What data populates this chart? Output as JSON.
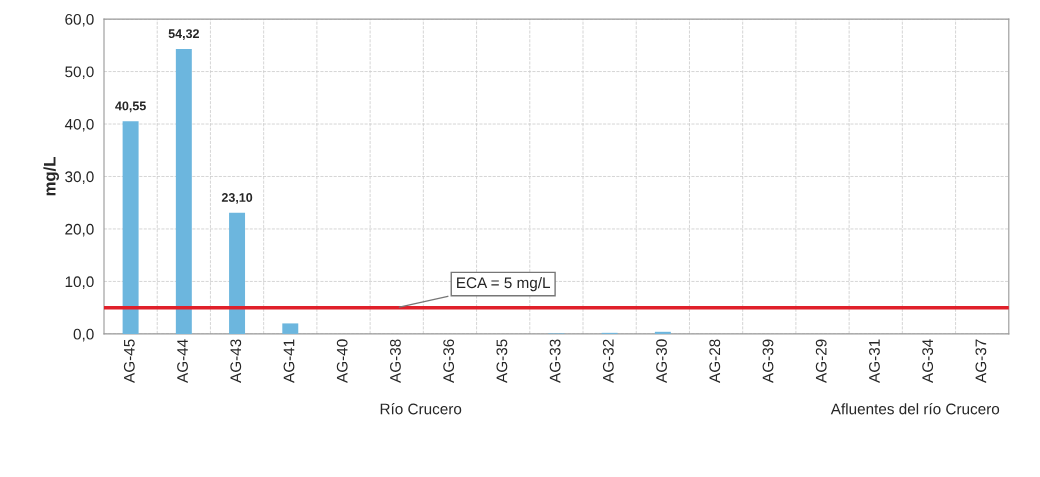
{
  "chart_data": {
    "type": "bar",
    "ylabel": "mg/L",
    "categories": [
      "AG-45",
      "AG-44",
      "AG-43",
      "AG-41",
      "AG-40",
      "AG-38",
      "AG-36",
      "AG-35",
      "AG-33",
      "AG-32",
      "AG-30",
      "AG-28",
      "AG-39",
      "AG-29",
      "AG-31",
      "AG-34",
      "AG-37"
    ],
    "values": [
      40.55,
      54.32,
      23.1,
      2.0,
      0,
      0,
      0,
      0,
      0.1,
      0.2,
      0.4,
      0,
      0,
      0,
      0,
      0,
      0
    ],
    "value_labels": [
      "40,55",
      "54,32",
      "23,10",
      null,
      null,
      null,
      null,
      null,
      null,
      null,
      null,
      null,
      null,
      null,
      null,
      null,
      null
    ],
    "color": "#6cb6de",
    "ylim": [
      0,
      60
    ],
    "yticks": [
      {
        "value": 0,
        "label": "0,0"
      },
      {
        "value": 10,
        "label": "10,0"
      },
      {
        "value": 20,
        "label": "20,0"
      },
      {
        "value": 30,
        "label": "30,0"
      },
      {
        "value": 40,
        "label": "40,0"
      },
      {
        "value": 50,
        "label": "50,0"
      },
      {
        "value": 60,
        "label": "60,0"
      }
    ],
    "ref_lines": [
      {
        "axis": "y",
        "value": 5,
        "label": "ECA = 5 mg/L",
        "color": "#e0202a"
      }
    ],
    "annotations": [
      "Río Crucero",
      "Afluentes del río Crucero"
    ],
    "grid": true
  }
}
